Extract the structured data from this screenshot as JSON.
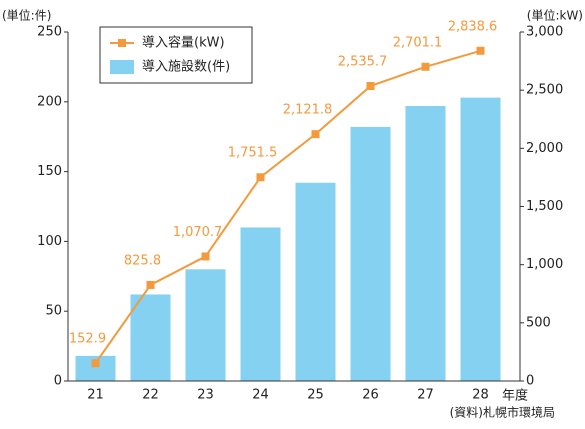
{
  "chart_data": {
    "type": "bar",
    "ylabel": "(単位:件)",
    "y2label": "(単位:kW)",
    "xlabel": "年度",
    "source": "(資料)札幌市環境局",
    "categories": [
      "21",
      "22",
      "23",
      "24",
      "25",
      "26",
      "27",
      "28"
    ],
    "series": [
      {
        "name": "導入容量(kW)",
        "type": "line",
        "axis": "y2",
        "color": "#f39a3c",
        "values": [
          152.9,
          825.8,
          1070.7,
          1751.5,
          2121.8,
          2535.7,
          2701.1,
          2838.6
        ],
        "value_labels": [
          "152.9",
          "825.8",
          "1,070.7",
          "1,751.5",
          "2,121.8",
          "2,535.7",
          "2,701.1",
          "2,838.6"
        ]
      },
      {
        "name": "導入施設数(件)",
        "type": "bar",
        "color": "#84d1f2",
        "values": [
          18,
          62,
          80,
          110,
          142,
          182,
          197,
          203
        ]
      }
    ],
    "ylim": [
      0,
      250
    ],
    "yticks": [
      0,
      50,
      100,
      150,
      200,
      250
    ],
    "y2lim": [
      0,
      3000
    ],
    "y2ticks": [
      0,
      500,
      {
        "value": 1000,
        "label": "1,000"
      },
      {
        "value": 1500,
        "label": "1,500"
      },
      {
        "value": 2000,
        "label": "2,000"
      },
      {
        "value": 2500,
        "label": "2,500"
      },
      {
        "value": 3000,
        "label": "3,000"
      }
    ]
  }
}
